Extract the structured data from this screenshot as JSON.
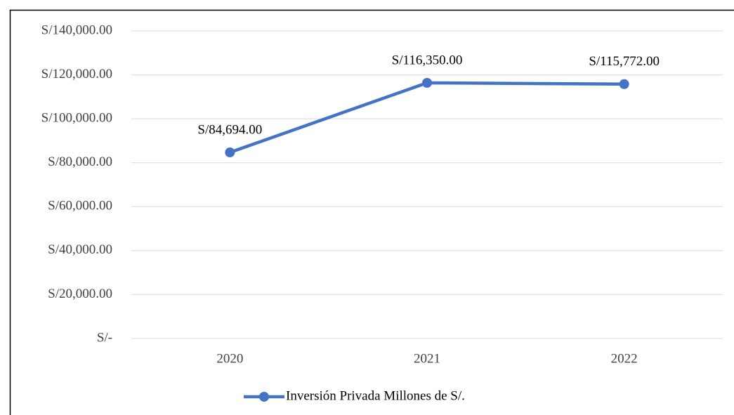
{
  "chart_data": {
    "type": "line",
    "categories": [
      "2020",
      "2021",
      "2022"
    ],
    "series": [
      {
        "name": "Inversión Privada Millones de S/.",
        "color": "#4472c4",
        "values": [
          84694,
          116350,
          115772
        ],
        "value_labels": [
          "S/84,694.00",
          "S/116,350.00",
          "S/115,772.00"
        ]
      }
    ],
    "ylim": [
      0,
      140000
    ],
    "yticks": [
      {
        "value": 0,
        "label": "S/-"
      },
      {
        "value": 20000,
        "label": "S/20,000.00"
      },
      {
        "value": 40000,
        "label": "S/40,000.00"
      },
      {
        "value": 60000,
        "label": "S/60,000.00"
      },
      {
        "value": 80000,
        "label": "S/80,000.00"
      },
      {
        "value": 100000,
        "label": "S/100,000.00"
      },
      {
        "value": 120000,
        "label": "S/120,000.00"
      },
      {
        "value": 140000,
        "label": "S/140,000.00"
      }
    ],
    "grid": true,
    "legend": "bottom"
  }
}
